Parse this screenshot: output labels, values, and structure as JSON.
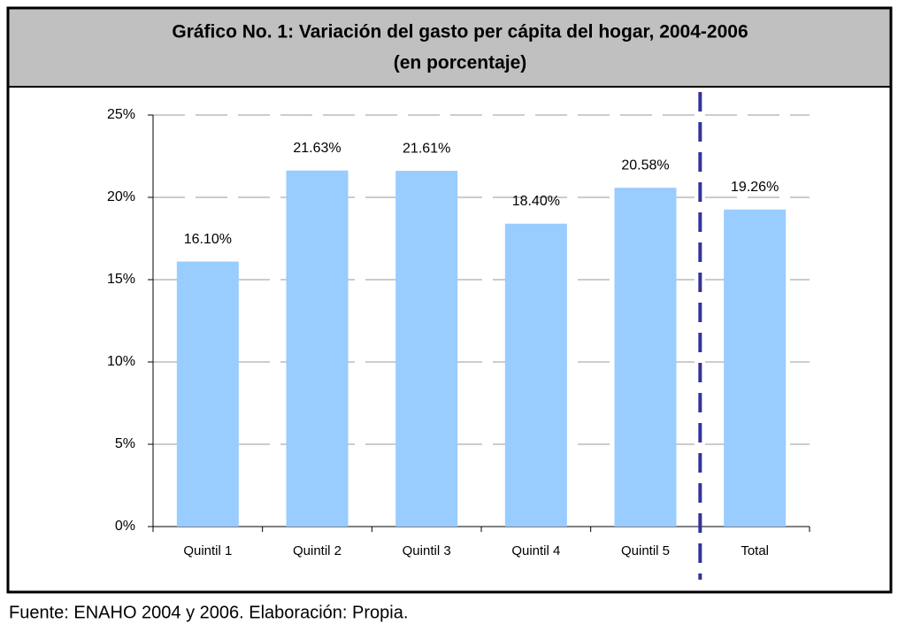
{
  "chart_data": {
    "type": "bar",
    "title": "Gráfico No. 1:  Variación del gasto per cápita del hogar, 2004-2006",
    "subtitle": "(en porcentaje)",
    "source": "Fuente: ENAHO 2004 y 2006. Elaboración: Propia.",
    "categories": [
      "Quintil 1",
      "Quintil 2",
      "Quintil 3",
      "Quintil 4",
      "Quintil 5",
      "Total"
    ],
    "values": [
      16.1,
      21.63,
      21.61,
      18.4,
      20.58,
      19.26
    ],
    "value_labels": [
      "16.10%",
      "21.63%",
      "21.61%",
      "18.40%",
      "20.58%",
      "19.26%"
    ],
    "color": "#99ccff",
    "ylim": [
      0,
      25
    ],
    "yticks": [
      {
        "value": 0,
        "label": "0%"
      },
      {
        "value": 5,
        "label": "5%"
      },
      {
        "value": 10,
        "label": "10%"
      },
      {
        "value": 15,
        "label": "15%"
      },
      {
        "value": 20,
        "label": "20%"
      },
      {
        "value": 25,
        "label": "25%"
      }
    ],
    "grid": true
  }
}
